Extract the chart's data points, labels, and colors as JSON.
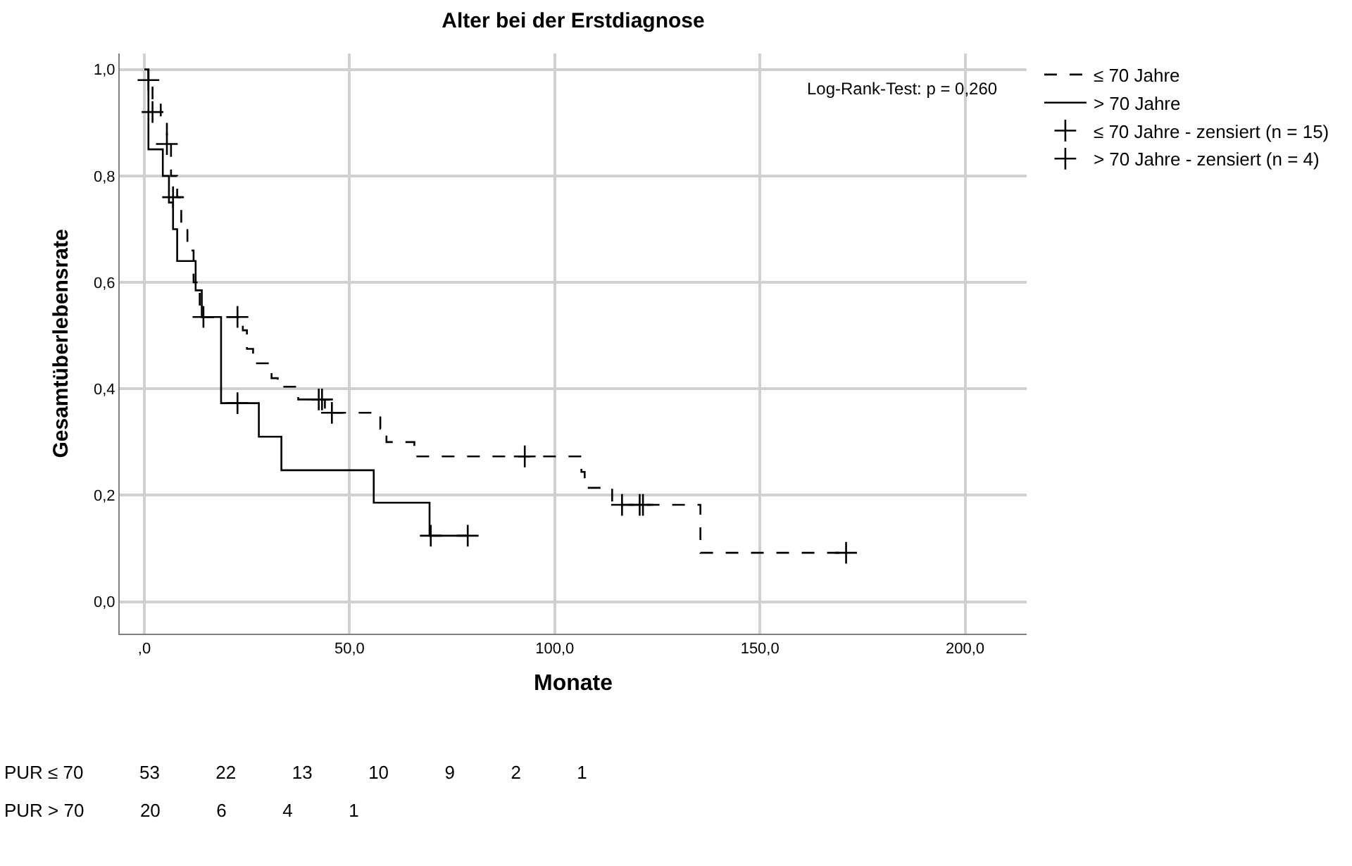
{
  "chart_data": {
    "type": "step",
    "title": "Alter bei der Erstdiagnose",
    "xlabel": "Monate",
    "ylabel": "Gesamtüberlebensrate",
    "xlim": [
      -6,
      215
    ],
    "ylim": [
      -0.06,
      1.03
    ],
    "xticks": [
      {
        "value": 0,
        "label": ",0"
      },
      {
        "value": 50,
        "label": "50,0"
      },
      {
        "value": 100,
        "label": "100,0"
      },
      {
        "value": 150,
        "label": "150,0"
      },
      {
        "value": 200,
        "label": "200,0"
      }
    ],
    "yticks": [
      {
        "value": 0,
        "label": "0,0"
      },
      {
        "value": 0.2,
        "label": "0,2"
      },
      {
        "value": 0.4,
        "label": "0,4"
      },
      {
        "value": 0.6,
        "label": "0,6"
      },
      {
        "value": 0.8,
        "label": "0,8"
      },
      {
        "value": 1,
        "label": "1,0"
      }
    ],
    "grid": true,
    "legend": "right",
    "series": [
      {
        "name": "≤ 70 Jahre",
        "color": "#000000",
        "line_style": "dashed",
        "x": [
          0,
          1,
          2,
          4,
          5.5,
          6.5,
          8,
          9,
          10.5,
          12,
          13.5,
          24,
          25,
          26.5,
          31,
          32.5,
          37.5,
          44,
          57.5,
          59,
          65.8,
          106.5,
          107.3,
          114,
          135.5,
          171
        ],
        "values": [
          1,
          0.98,
          0.94,
          0.9,
          0.86,
          0.8,
          0.76,
          0.7,
          0.66,
          0.6,
          0.535,
          0.51,
          0.475,
          0.448,
          0.42,
          0.404,
          0.38,
          0.355,
          0.325,
          0.3,
          0.273,
          0.244,
          0.214,
          0.182,
          0.092,
          0.092
        ]
      },
      {
        "name": "> 70 Jahre",
        "color": "#000000",
        "line_style": "solid",
        "x": [
          0,
          1,
          4.5,
          6,
          7,
          8,
          12.5,
          14,
          18.7,
          27.9,
          33.4,
          55.9,
          69.5,
          78.8
        ],
        "values": [
          1,
          0.85,
          0.8,
          0.75,
          0.7,
          0.64,
          0.585,
          0.535,
          0.373,
          0.31,
          0.247,
          0.186,
          0.124,
          0.124
        ]
      },
      {
        "name": "≤ 70 Jahre - zensiert (n = 15)",
        "color": "#000000",
        "type": "scatter",
        "marker": "cross",
        "x": [
          1,
          2,
          5.5,
          7,
          22.7,
          42.5,
          43.3,
          45.7,
          92.7,
          116.4,
          120.7,
          121.5,
          171
        ],
        "values": [
          0.98,
          0.92,
          0.86,
          0.76,
          0.535,
          0.38,
          0.38,
          0.355,
          0.273,
          0.182,
          0.182,
          0.182,
          0.092
        ]
      },
      {
        "name": "> 70 Jahre - zensiert (n = 4)",
        "color": "#000000",
        "type": "scatter",
        "marker": "cross",
        "x": [
          14.4,
          22.7,
          69.8,
          78.8
        ],
        "values": [
          0.535,
          0.373,
          0.124,
          0.124
        ]
      }
    ],
    "annotations": [
      "Log-Rank-Test: p = 0,260",
      "PUR ≤ 70  53  22  13  10  9  2  1",
      "PUR > 70  20  6  4  1"
    ]
  }
}
